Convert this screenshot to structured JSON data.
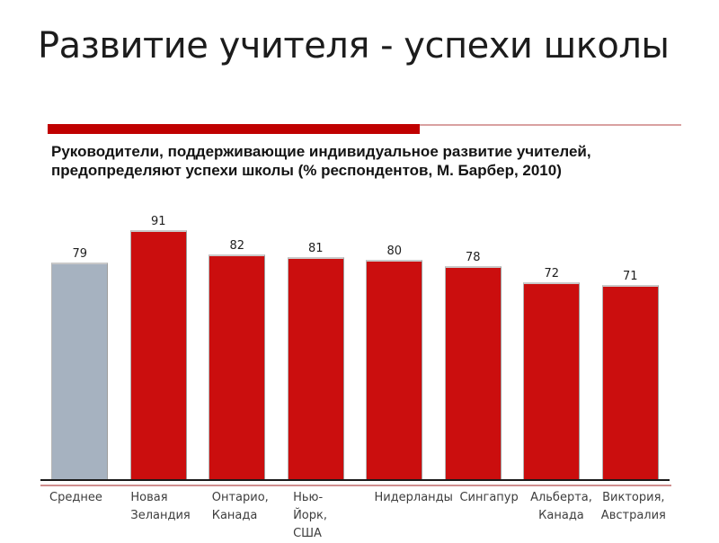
{
  "slide": {
    "title": "Развитие учителя - успехи школы",
    "subtitle": "Руководители, поддерживающие индивидуальное развитие учителей,\nпредопределяют успехи школы (% респондентов, М. Барбер, 2010)",
    "accent_bar_color": "#c00000",
    "accent_line_color": "#d9a1a1"
  },
  "chart_data": {
    "type": "bar",
    "title": "",
    "xlabel": "",
    "ylabel": "",
    "categories": [
      "Среднее",
      "Новая\nЗеландия",
      "Онтарио,\nКанада",
      "Нью-\nЙорк,\nСША",
      "Нидерланды",
      "Сингапур",
      "Альберта,\nКанада",
      "Виктория,\nАвстралия"
    ],
    "values": [
      79,
      91,
      82,
      81,
      80,
      78,
      72,
      71
    ],
    "bar_colors": [
      "#a6b2c0",
      "#cb0e0e",
      "#cb0e0e",
      "#cb0e0e",
      "#cb0e0e",
      "#cb0e0e",
      "#cb0e0e",
      "#cb0e0e"
    ],
    "data_labels_shown": true,
    "ylim": [
      0,
      100
    ],
    "grid": false,
    "legend": false,
    "axis_line_color": "#1a1a1a",
    "axis_underline_color": "#cf8e8e"
  }
}
